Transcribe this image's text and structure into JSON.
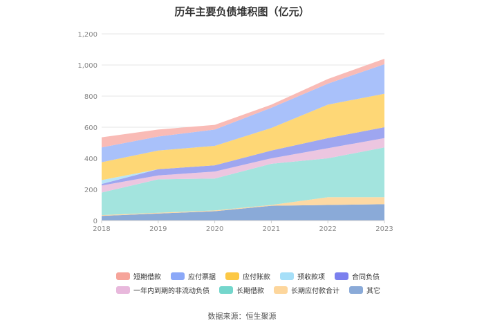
{
  "chart_data": {
    "type": "area",
    "stacked": true,
    "title": "历年主要负债堆积图（亿元）",
    "categories": [
      "2018",
      "2019",
      "2020",
      "2021",
      "2022",
      "2023"
    ],
    "yticks": [
      "0",
      "200",
      "400",
      "600",
      "800",
      "1,000",
      "1,200"
    ],
    "ylim": [
      0,
      1200
    ],
    "series": [
      {
        "name": "其它",
        "color": "#8aaad8",
        "values": [
          30,
          45,
          60,
          95,
          100,
          105
        ]
      },
      {
        "name": "长期应付款合计",
        "color": "#fdd9a4",
        "values": [
          5,
          5,
          5,
          5,
          50,
          45
        ]
      },
      {
        "name": "长期借款",
        "color": "#a3e4de",
        "values": [
          145,
          215,
          205,
          265,
          250,
          320
        ]
      },
      {
        "name": "一年内到期的非流动负债",
        "color": "#ecc6e0",
        "values": [
          45,
          25,
          45,
          35,
          65,
          60
        ]
      },
      {
        "name": "合同负债",
        "color": "#9ea6f0",
        "values": [
          10,
          40,
          40,
          50,
          65,
          70
        ]
      },
      {
        "name": "预收款项",
        "color": "#b8e4f8",
        "values": [
          25,
          0,
          0,
          0,
          0,
          0
        ]
      },
      {
        "name": "应付账款",
        "color": "#fed776",
        "values": [
          115,
          120,
          125,
          145,
          215,
          215
        ]
      },
      {
        "name": "应付票据",
        "color": "#a9c1fa",
        "values": [
          95,
          90,
          105,
          130,
          135,
          190
        ]
      },
      {
        "name": "短期借款",
        "color": "#f9bbb6",
        "values": [
          65,
          45,
          30,
          20,
          30,
          35
        ]
      }
    ],
    "legend": {
      "position": "bottom",
      "rows": [
        [
          {
            "label": "短期借款",
            "color": "#f6a49a"
          },
          {
            "label": "应付票据",
            "color": "#8ba8f8"
          },
          {
            "label": "应付账款",
            "color": "#fcc845"
          },
          {
            "label": "预收款项",
            "color": "#a6dff8"
          },
          {
            "label": "合同负债",
            "color": "#7b80ee"
          }
        ],
        [
          {
            "label": "一年内到期的非流动负债",
            "color": "#e8b8dc"
          },
          {
            "label": "长期借款",
            "color": "#74d6cc"
          },
          {
            "label": "长期应付款合计",
            "color": "#fdd69c"
          },
          {
            "label": "其它",
            "color": "#8aaad8"
          }
        ]
      ]
    },
    "source": "数据来源：恒生聚源"
  }
}
